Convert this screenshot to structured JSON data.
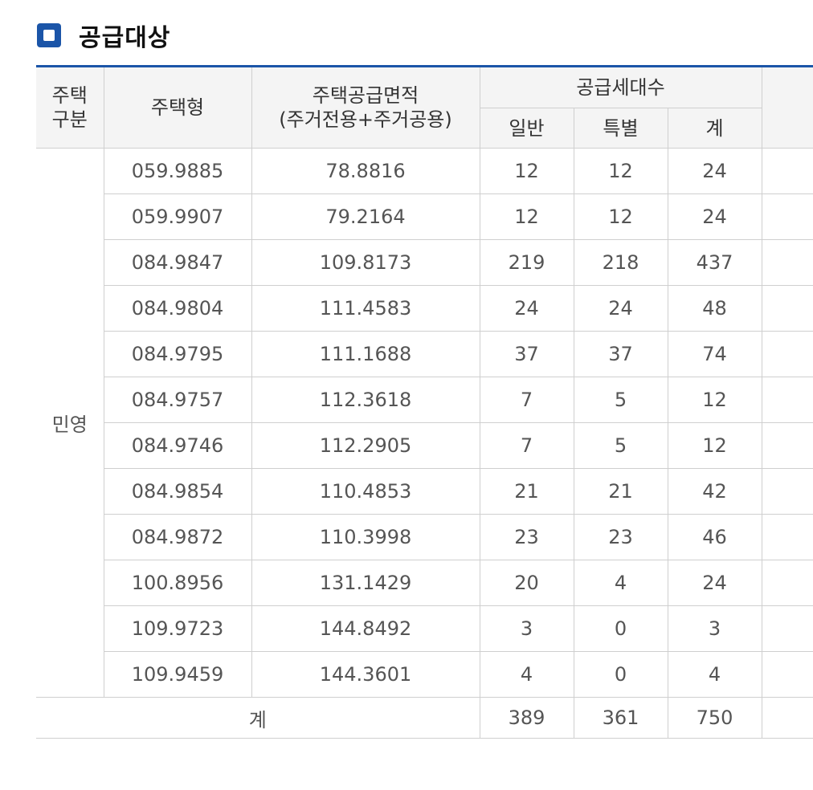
{
  "section": {
    "title": "공급대상"
  },
  "table": {
    "headers": {
      "housing_category_line1": "주택",
      "housing_category_line2": "구분",
      "housing_type": "주택형",
      "supply_area_line1": "주택공급면적",
      "supply_area_line2": "(주거전용+주거공용)",
      "supply_units": "공급세대수",
      "general": "일반",
      "special": "특별",
      "total": "계"
    },
    "category": "민영",
    "rows": [
      {
        "type": "059.9885",
        "area": "78.8816",
        "general": "12",
        "special": "12",
        "total": "24"
      },
      {
        "type": "059.9907",
        "area": "79.2164",
        "general": "12",
        "special": "12",
        "total": "24"
      },
      {
        "type": "084.9847",
        "area": "109.8173",
        "general": "219",
        "special": "218",
        "total": "437"
      },
      {
        "type": "084.9804",
        "area": "111.4583",
        "general": "24",
        "special": "24",
        "total": "48"
      },
      {
        "type": "084.9795",
        "area": "111.1688",
        "general": "37",
        "special": "37",
        "total": "74"
      },
      {
        "type": "084.9757",
        "area": "112.3618",
        "general": "7",
        "special": "5",
        "total": "12"
      },
      {
        "type": "084.9746",
        "area": "112.2905",
        "general": "7",
        "special": "5",
        "total": "12"
      },
      {
        "type": "084.9854",
        "area": "110.4853",
        "general": "21",
        "special": "21",
        "total": "42"
      },
      {
        "type": "084.9872",
        "area": "110.3998",
        "general": "23",
        "special": "23",
        "total": "46"
      },
      {
        "type": "100.8956",
        "area": "131.1429",
        "general": "20",
        "special": "4",
        "total": "24"
      },
      {
        "type": "109.9723",
        "area": "144.8492",
        "general": "3",
        "special": "0",
        "total": "3"
      },
      {
        "type": "109.9459",
        "area": "144.3601",
        "general": "4",
        "special": "0",
        "total": "4"
      }
    ],
    "summary": {
      "label": "계",
      "general": "389",
      "special": "361",
      "total": "750"
    }
  },
  "colors": {
    "accent": "#1b55a8",
    "header_bg": "#f4f4f4",
    "border": "#cfcfcf"
  }
}
